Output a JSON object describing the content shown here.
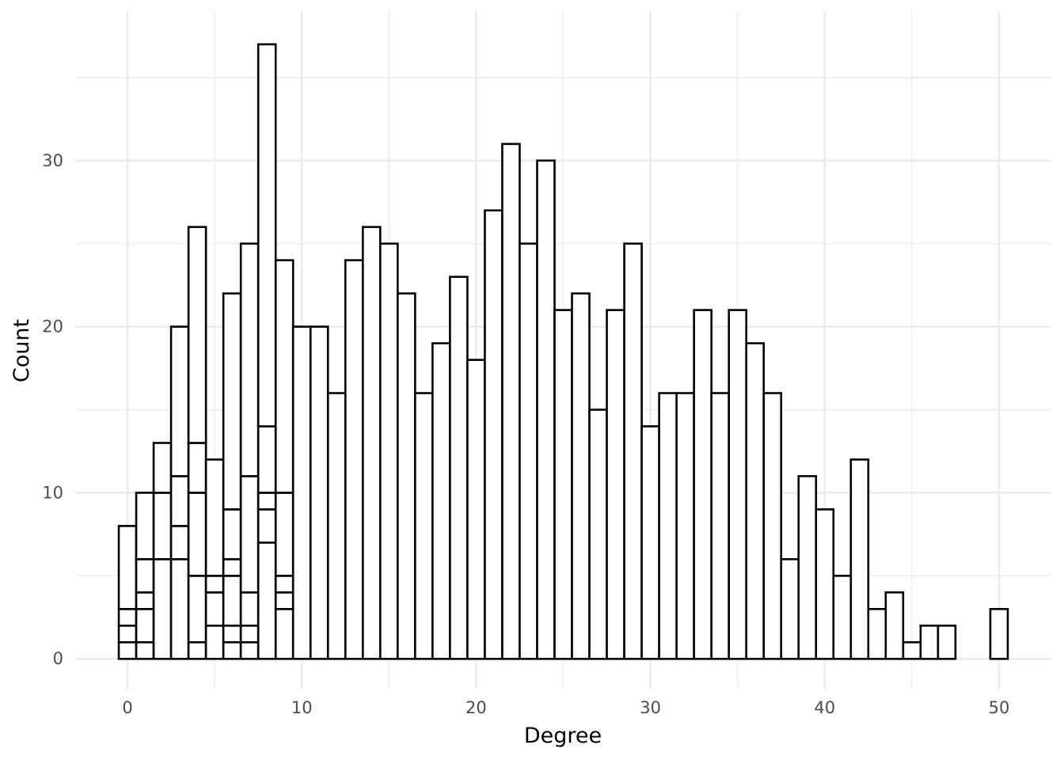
{
  "chart_data": {
    "type": "bar",
    "subtype": "stacked-histogram",
    "title": "",
    "xlabel": "Degree",
    "ylabel": "Count",
    "xlim": [
      -3,
      53
    ],
    "ylim": [
      -1.8,
      39
    ],
    "x_ticks": [
      0,
      10,
      20,
      30,
      40,
      50
    ],
    "y_ticks": [
      0,
      10,
      20,
      30
    ],
    "grid": true,
    "legend": "none",
    "bin_width": 1,
    "bars": [
      {
        "x": 0,
        "total": 8,
        "segments": [
          1,
          1,
          1,
          5
        ]
      },
      {
        "x": 1,
        "total": 10,
        "segments": [
          1,
          2,
          1,
          2,
          4
        ]
      },
      {
        "x": 2,
        "total": 13,
        "segments": [
          6,
          4,
          3
        ]
      },
      {
        "x": 3,
        "total": 20,
        "segments": [
          6,
          2,
          3,
          9
        ]
      },
      {
        "x": 4,
        "total": 26,
        "segments": [
          1,
          4,
          5,
          3,
          13
        ]
      },
      {
        "x": 5,
        "total": 12,
        "segments": [
          2,
          2,
          1,
          7
        ]
      },
      {
        "x": 6,
        "total": 22,
        "segments": [
          1,
          1,
          3,
          1,
          3,
          13
        ]
      },
      {
        "x": 7,
        "total": 25,
        "segments": [
          1,
          1,
          2,
          7,
          14
        ]
      },
      {
        "x": 8,
        "total": 37,
        "segments": [
          7,
          2,
          1,
          4,
          23
        ]
      },
      {
        "x": 9,
        "total": 24,
        "segments": [
          3,
          1,
          1,
          5,
          14
        ]
      },
      {
        "x": 10,
        "total": 20,
        "segments": [
          20
        ]
      },
      {
        "x": 11,
        "total": 20,
        "segments": [
          20
        ]
      },
      {
        "x": 12,
        "total": 16,
        "segments": [
          16
        ]
      },
      {
        "x": 13,
        "total": 24,
        "segments": [
          24
        ]
      },
      {
        "x": 14,
        "total": 26,
        "segments": [
          26
        ]
      },
      {
        "x": 15,
        "total": 25,
        "segments": [
          25
        ]
      },
      {
        "x": 16,
        "total": 22,
        "segments": [
          22
        ]
      },
      {
        "x": 17,
        "total": 16,
        "segments": [
          16
        ]
      },
      {
        "x": 18,
        "total": 19,
        "segments": [
          19
        ]
      },
      {
        "x": 19,
        "total": 23,
        "segments": [
          23
        ]
      },
      {
        "x": 20,
        "total": 18,
        "segments": [
          18
        ]
      },
      {
        "x": 21,
        "total": 27,
        "segments": [
          27
        ]
      },
      {
        "x": 22,
        "total": 31,
        "segments": [
          31
        ]
      },
      {
        "x": 23,
        "total": 25,
        "segments": [
          25
        ]
      },
      {
        "x": 24,
        "total": 30,
        "segments": [
          30
        ]
      },
      {
        "x": 25,
        "total": 21,
        "segments": [
          21
        ]
      },
      {
        "x": 26,
        "total": 22,
        "segments": [
          22
        ]
      },
      {
        "x": 27,
        "total": 15,
        "segments": [
          15
        ]
      },
      {
        "x": 28,
        "total": 21,
        "segments": [
          21
        ]
      },
      {
        "x": 29,
        "total": 25,
        "segments": [
          25
        ]
      },
      {
        "x": 30,
        "total": 14,
        "segments": [
          14
        ]
      },
      {
        "x": 31,
        "total": 16,
        "segments": [
          16
        ]
      },
      {
        "x": 32,
        "total": 16,
        "segments": [
          16
        ]
      },
      {
        "x": 33,
        "total": 21,
        "segments": [
          21
        ]
      },
      {
        "x": 34,
        "total": 16,
        "segments": [
          16
        ]
      },
      {
        "x": 35,
        "total": 21,
        "segments": [
          21
        ]
      },
      {
        "x": 36,
        "total": 19,
        "segments": [
          19
        ]
      },
      {
        "x": 37,
        "total": 16,
        "segments": [
          16
        ]
      },
      {
        "x": 38,
        "total": 6,
        "segments": [
          6
        ]
      },
      {
        "x": 39,
        "total": 11,
        "segments": [
          11
        ]
      },
      {
        "x": 40,
        "total": 9,
        "segments": [
          9
        ]
      },
      {
        "x": 41,
        "total": 5,
        "segments": [
          5
        ]
      },
      {
        "x": 42,
        "total": 12,
        "segments": [
          12
        ]
      },
      {
        "x": 43,
        "total": 3,
        "segments": [
          3
        ]
      },
      {
        "x": 44,
        "total": 4,
        "segments": [
          4
        ]
      },
      {
        "x": 45,
        "total": 1,
        "segments": [
          1
        ]
      },
      {
        "x": 46,
        "total": 2,
        "segments": [
          2
        ]
      },
      {
        "x": 47,
        "total": 2,
        "segments": [
          2
        ]
      },
      {
        "x": 50,
        "total": 3,
        "segments": [
          3
        ]
      }
    ],
    "colors": {
      "bar_fill": "#ffffff",
      "bar_stroke": "#000000",
      "grid": "#ebebeb",
      "tick_text": "#4d4d4d",
      "axis_title": "#000000"
    }
  }
}
